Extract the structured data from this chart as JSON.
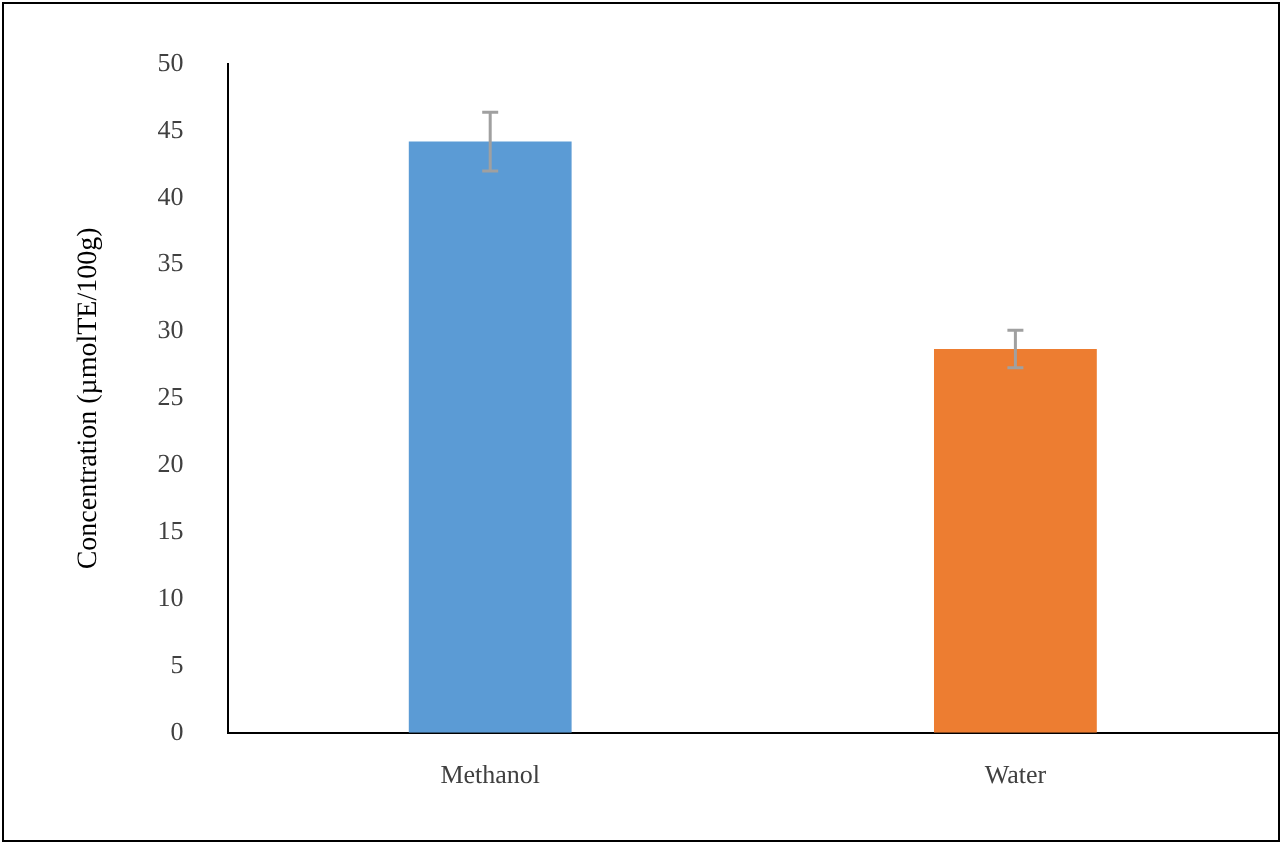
{
  "chart_data": {
    "type": "bar",
    "ylabel": "Concentration (µmolTE/100g)",
    "categories": [
      "Methanol",
      "Water"
    ],
    "values": [
      44.2,
      28.7
    ],
    "colors": [
      "#5b9bd5",
      "#ed7d31"
    ],
    "errors": [
      2.2,
      1.4
    ],
    "ylim": [
      0,
      50
    ],
    "yticks": [
      0,
      5,
      10,
      15,
      20,
      25,
      30,
      35,
      40,
      45,
      50
    ],
    "grid": false,
    "legend": false
  }
}
